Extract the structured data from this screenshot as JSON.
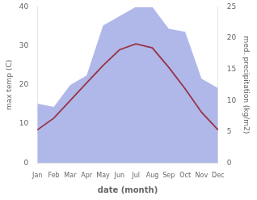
{
  "chart_data": {
    "type": "line",
    "categories": [
      "Jan",
      "Feb",
      "Mar",
      "Apr",
      "May",
      "Jun",
      "Jul",
      "Aug",
      "Sep",
      "Oct",
      "Nov",
      "Dec"
    ],
    "xlabel": "date (month)",
    "ylabel": "max temp (C)",
    "y2label": "med. precipitation (kg/m2)",
    "series": [
      {
        "type": "line",
        "color": "#993344",
        "values": [
          8.5,
          11.5,
          16.0,
          20.5,
          25.0,
          29.0,
          30.5,
          29.5,
          24.5,
          19.0,
          13.0,
          8.5
        ]
      },
      {
        "type": "area",
        "color": "#b0b8ea",
        "axis": "y2",
        "values": [
          9.5,
          9.0,
          12.5,
          14.0,
          22.0,
          23.5,
          25.0,
          25.0,
          21.5,
          21.0,
          13.5,
          12.0
        ]
      }
    ],
    "ylim": [
      0,
      40
    ],
    "yticks": [
      0,
      10,
      20,
      30,
      40
    ],
    "y2lim": [
      0,
      25
    ],
    "y2ticks": [
      0,
      5,
      10,
      15,
      20,
      25
    ],
    "grid": false
  }
}
